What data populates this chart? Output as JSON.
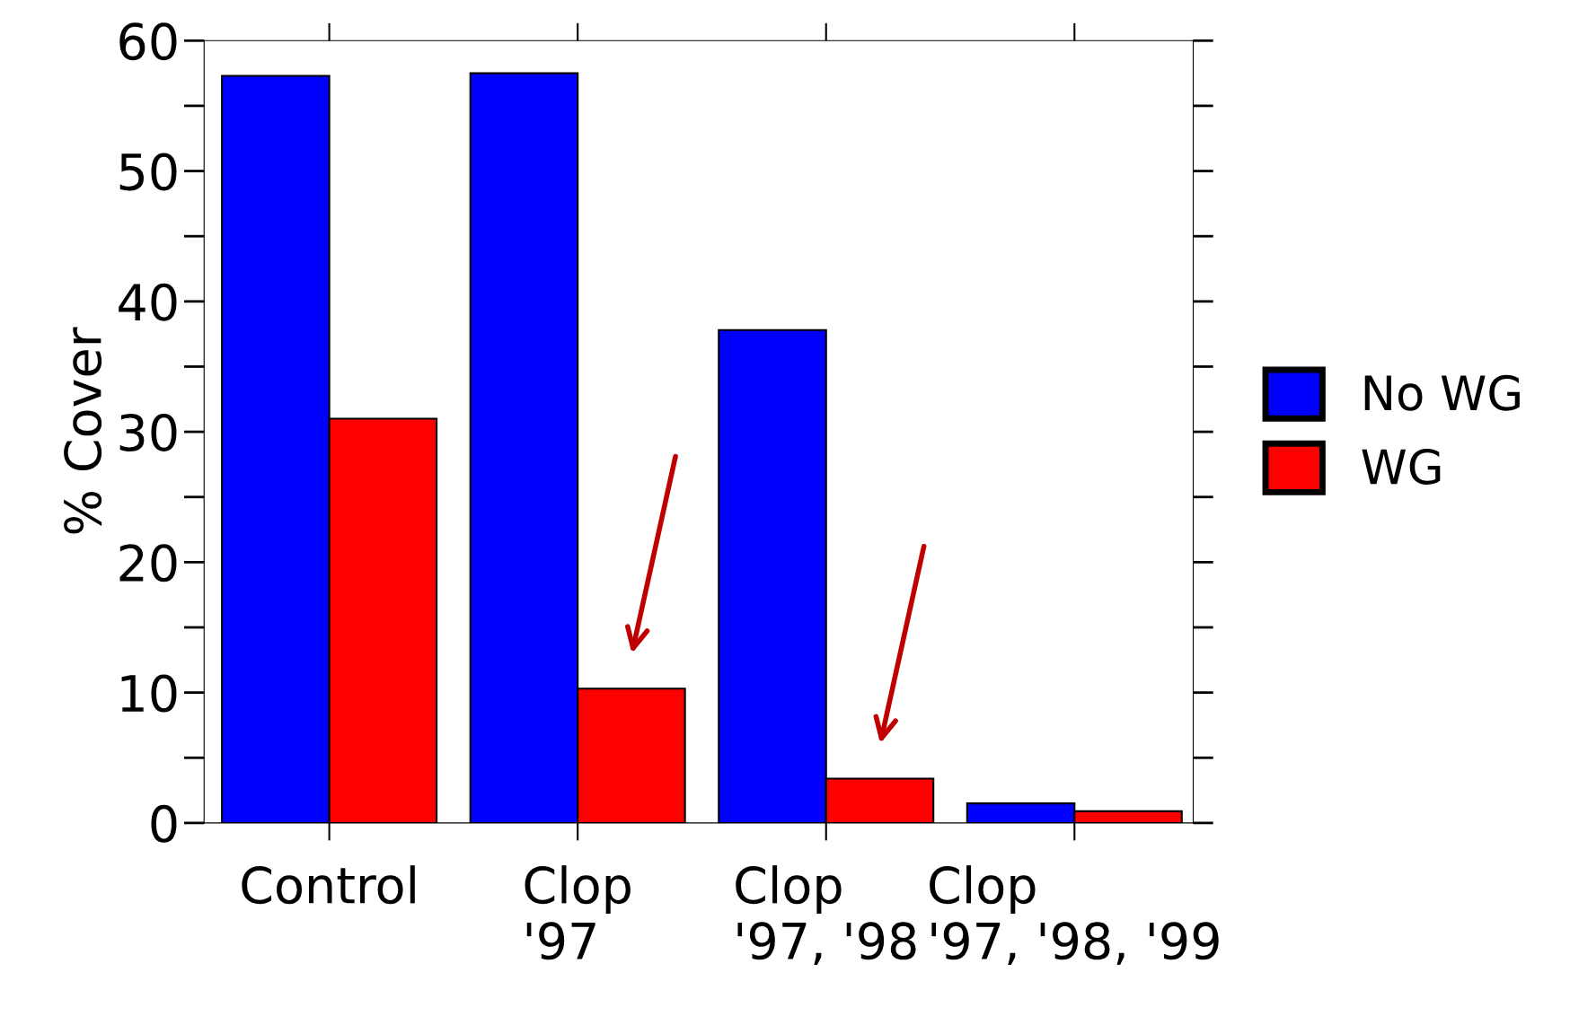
{
  "chart_data": {
    "type": "bar",
    "ylabel": "% Cover",
    "categories": [
      "Control",
      "Clop\n'97",
      "Clop\n'97, '98",
      "Clop\n'97, '98, '99"
    ],
    "series": [
      {
        "name": "No WG",
        "color": "#0000ff",
        "values": [
          57.3,
          57.5,
          37.8,
          1.5
        ]
      },
      {
        "name": "WG",
        "color": "#ff0000",
        "values": [
          31.0,
          10.3,
          3.4,
          0.9
        ]
      }
    ],
    "ylim": [
      0,
      60
    ],
    "yticks": [
      0,
      10,
      20,
      30,
      40,
      50,
      60
    ],
    "grid": false,
    "legend": "right"
  }
}
